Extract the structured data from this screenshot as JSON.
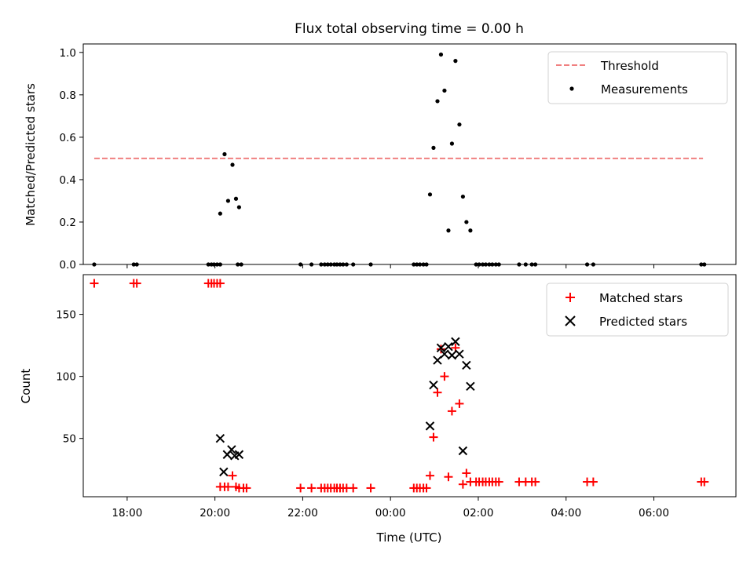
{
  "chart_data": {
    "type": "scatter",
    "title": "Flux total observing time = 0.00 h",
    "xlabel": "Time (UTC)",
    "x_unit": "hours since 00:00 UTC",
    "xlim": [
      -7.0,
      7.87
    ],
    "x_ticks": [
      {
        "label": "18:00",
        "value": -6
      },
      {
        "label": "20:00",
        "value": -4
      },
      {
        "label": "22:00",
        "value": -2
      },
      {
        "label": "00:00",
        "value": 0
      },
      {
        "label": "02:00",
        "value": 2
      },
      {
        "label": "04:00",
        "value": 4
      },
      {
        "label": "06:00",
        "value": 6
      }
    ],
    "panels": [
      {
        "name": "ratio",
        "ylabel": "Matched/Predicted stars",
        "ylim": [
          0,
          1.04
        ],
        "y_ticks": [
          {
            "label": "0.0",
            "value": 0.0
          },
          {
            "label": "0.2",
            "value": 0.2
          },
          {
            "label": "0.4",
            "value": 0.4
          },
          {
            "label": "0.6",
            "value": 0.6
          },
          {
            "label": "0.8",
            "value": 0.8
          },
          {
            "label": "1.0",
            "value": 1.0
          }
        ],
        "legend": {
          "placement": "top-right",
          "entries": [
            {
              "label": "Threshold",
              "marker": "dashed-line",
              "color": "#f08080"
            },
            {
              "label": "Measurements",
              "marker": "dot",
              "color": "#000000"
            }
          ]
        },
        "series": [
          {
            "name": "Threshold",
            "kind": "hline",
            "color": "#f08080",
            "y": 0.5,
            "x_range": [
              -6.75,
              7.12
            ]
          },
          {
            "name": "Measurements",
            "kind": "scatter",
            "marker": "dot",
            "color": "#000000",
            "points": [
              [
                -6.75,
                0
              ],
              [
                -5.85,
                0
              ],
              [
                -5.78,
                0
              ],
              [
                -4.15,
                0
              ],
              [
                -4.08,
                0
              ],
              [
                -4.02,
                0
              ],
              [
                -3.95,
                0
              ],
              [
                -3.88,
                0
              ],
              [
                -3.48,
                0
              ],
              [
                -3.4,
                0
              ],
              [
                -2.05,
                0
              ],
              [
                -1.8,
                0
              ],
              [
                -1.58,
                0
              ],
              [
                -1.5,
                0
              ],
              [
                -1.43,
                0
              ],
              [
                -1.36,
                0
              ],
              [
                -1.28,
                0
              ],
              [
                -1.22,
                0
              ],
              [
                -1.15,
                0
              ],
              [
                -1.08,
                0
              ],
              [
                -1.0,
                0
              ],
              [
                -0.85,
                0
              ],
              [
                -0.45,
                0
              ],
              [
                0.53,
                0
              ],
              [
                0.6,
                0
              ],
              [
                0.67,
                0
              ],
              [
                0.75,
                0
              ],
              [
                0.82,
                0
              ],
              [
                1.95,
                0
              ],
              [
                2.02,
                0
              ],
              [
                2.1,
                0
              ],
              [
                2.17,
                0
              ],
              [
                2.25,
                0
              ],
              [
                2.32,
                0
              ],
              [
                2.4,
                0
              ],
              [
                2.47,
                0
              ],
              [
                2.93,
                0
              ],
              [
                3.08,
                0
              ],
              [
                3.22,
                0
              ],
              [
                3.3,
                0
              ],
              [
                4.48,
                0
              ],
              [
                4.62,
                0
              ],
              [
                7.08,
                0
              ],
              [
                7.15,
                0
              ],
              [
                -3.88,
                0.24
              ],
              [
                -3.78,
                0.52
              ],
              [
                -3.7,
                0.3
              ],
              [
                -3.6,
                0.47
              ],
              [
                -3.52,
                0.31
              ],
              [
                -3.45,
                0.27
              ],
              [
                0.9,
                0.33
              ],
              [
                0.98,
                0.55
              ],
              [
                1.07,
                0.77
              ],
              [
                1.15,
                0.99
              ],
              [
                1.23,
                0.82
              ],
              [
                1.32,
                0.16
              ],
              [
                1.4,
                0.57
              ],
              [
                1.48,
                0.96
              ],
              [
                1.57,
                0.66
              ],
              [
                1.65,
                0.32
              ],
              [
                1.73,
                0.2
              ],
              [
                1.82,
                0.16
              ]
            ]
          }
        ]
      },
      {
        "name": "count",
        "ylabel": "Count",
        "ylim": [
          3,
          182
        ],
        "y_ticks": [
          {
            "label": "50",
            "value": 50
          },
          {
            "label": "100",
            "value": 100
          },
          {
            "label": "150",
            "value": 150
          }
        ],
        "legend": {
          "placement": "top-right",
          "entries": [
            {
              "label": "Matched stars",
              "marker": "plus",
              "color": "#ff0000"
            },
            {
              "label": "Predicted stars",
              "marker": "x",
              "color": "#000000"
            }
          ]
        },
        "series": [
          {
            "name": "Matched stars",
            "kind": "scatter",
            "marker": "plus",
            "color": "#ff0000",
            "points": [
              [
                -6.75,
                175
              ],
              [
                -5.85,
                175
              ],
              [
                -5.78,
                175
              ],
              [
                -4.15,
                175
              ],
              [
                -4.08,
                175
              ],
              [
                -4.02,
                175
              ],
              [
                -3.95,
                175
              ],
              [
                -3.88,
                175
              ],
              [
                -3.88,
                11
              ],
              [
                -3.78,
                11
              ],
              [
                -3.7,
                11
              ],
              [
                -3.6,
                20
              ],
              [
                -3.52,
                11
              ],
              [
                -3.45,
                10
              ],
              [
                -3.35,
                10
              ],
              [
                -3.28,
                10
              ],
              [
                -2.05,
                10
              ],
              [
                -1.8,
                10
              ],
              [
                -1.58,
                10
              ],
              [
                -1.5,
                10
              ],
              [
                -1.43,
                10
              ],
              [
                -1.36,
                10
              ],
              [
                -1.28,
                10
              ],
              [
                -1.22,
                10
              ],
              [
                -1.15,
                10
              ],
              [
                -1.08,
                10
              ],
              [
                -1.0,
                10
              ],
              [
                -0.85,
                10
              ],
              [
                -0.45,
                10
              ],
              [
                0.53,
                10
              ],
              [
                0.6,
                10
              ],
              [
                0.67,
                10
              ],
              [
                0.75,
                10
              ],
              [
                0.82,
                10
              ],
              [
                0.9,
                20
              ],
              [
                0.98,
                51
              ],
              [
                1.07,
                87
              ],
              [
                1.15,
                122
              ],
              [
                1.23,
                100
              ],
              [
                1.32,
                19
              ],
              [
                1.4,
                72
              ],
              [
                1.48,
                123
              ],
              [
                1.57,
                78
              ],
              [
                1.65,
                13
              ],
              [
                1.73,
                22
              ],
              [
                1.82,
                15
              ],
              [
                1.95,
                15
              ],
              [
                2.02,
                15
              ],
              [
                2.1,
                15
              ],
              [
                2.17,
                15
              ],
              [
                2.25,
                15
              ],
              [
                2.32,
                15
              ],
              [
                2.4,
                15
              ],
              [
                2.47,
                15
              ],
              [
                2.93,
                15
              ],
              [
                3.08,
                15
              ],
              [
                3.22,
                15
              ],
              [
                3.3,
                15
              ],
              [
                4.48,
                15
              ],
              [
                4.62,
                15
              ],
              [
                7.08,
                15
              ],
              [
                7.15,
                15
              ]
            ]
          },
          {
            "name": "Predicted stars",
            "kind": "scatter",
            "marker": "x",
            "color": "#000000",
            "points": [
              [
                -3.88,
                50
              ],
              [
                -3.8,
                23
              ],
              [
                -3.72,
                37
              ],
              [
                -3.62,
                41
              ],
              [
                -3.55,
                36
              ],
              [
                -3.45,
                37
              ],
              [
                0.9,
                60
              ],
              [
                0.98,
                93
              ],
              [
                1.07,
                113
              ],
              [
                1.15,
                123
              ],
              [
                1.23,
                118
              ],
              [
                1.32,
                124
              ],
              [
                1.4,
                117
              ],
              [
                1.48,
                128
              ],
              [
                1.57,
                118
              ],
              [
                1.65,
                40
              ],
              [
                1.73,
                109
              ],
              [
                1.82,
                92
              ]
            ]
          }
        ]
      }
    ]
  }
}
